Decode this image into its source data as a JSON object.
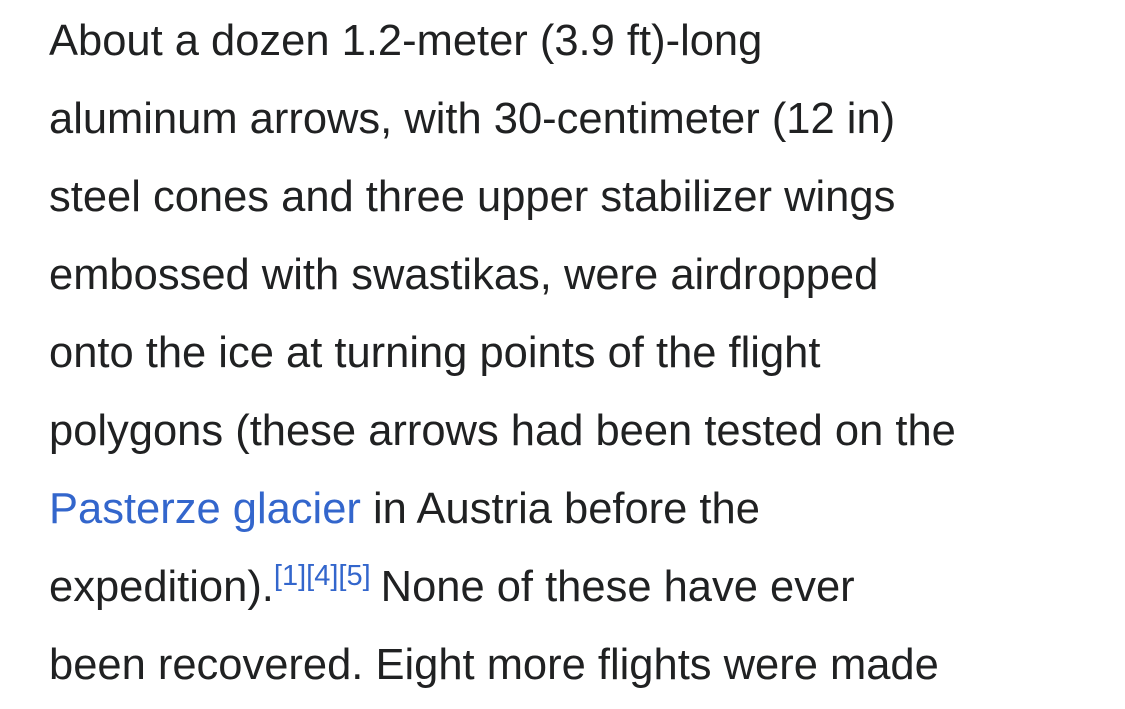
{
  "paragraph": {
    "line1": "About a dozen 1.2-meter (3.9 ft)-long",
    "line2": "aluminum arrows, with 30-centimeter (12 in)",
    "line3": "steel cones and three upper stabilizer wings",
    "line4": "embossed with swastikas, were airdropped",
    "line5": "onto the ice at turning points of the flight",
    "line6": "polygons (these arrows had been tested on the",
    "line7_link": "Pasterze glacier",
    "line7_rest": " in Austria before the",
    "line8_start": "expedition).",
    "line8_refs": [
      "[1]",
      "[4]",
      "[5]"
    ],
    "line8_rest": "None of these have ever",
    "line9": "been recovered. Eight more flights were made"
  },
  "colors": {
    "text": "#202122",
    "link": "#3366cc",
    "background": "#ffffff"
  }
}
